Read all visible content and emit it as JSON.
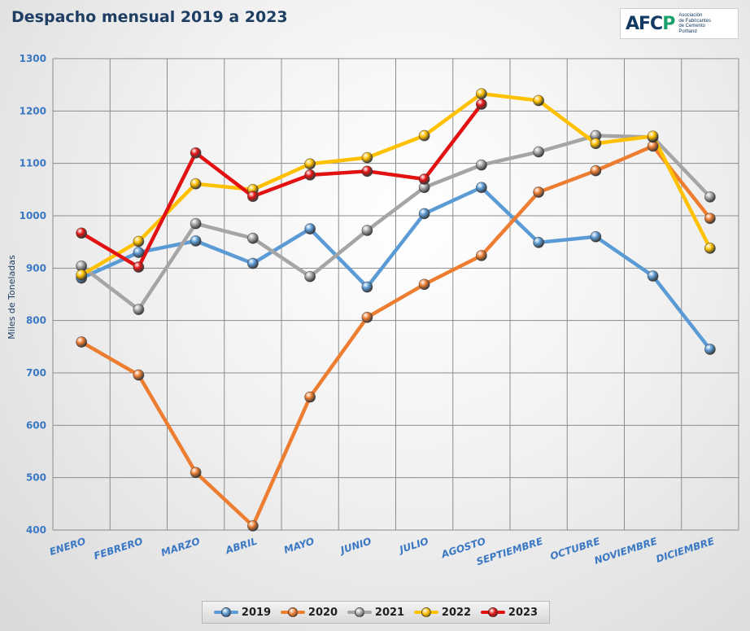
{
  "title": "Despacho mensual 2019 a 2023",
  "logo": {
    "name": "AFCP",
    "mark_left": "AFC",
    "mark_right": "P",
    "subtitle_lines": [
      "Asociación",
      "de Fabricantes",
      "de Cemento",
      "Portland"
    ]
  },
  "chart_data": {
    "type": "line",
    "title": "Despacho mensual 2019 a 2023",
    "xlabel": "",
    "ylabel": "Miles de Toneladas",
    "ylim": [
      400,
      1300
    ],
    "yticks": [
      400,
      500,
      600,
      700,
      800,
      900,
      1000,
      1100,
      1200,
      1300
    ],
    "grid": true,
    "legend_position": "bottom",
    "categories": [
      "ENERO",
      "FEBRERO",
      "MARZO",
      "ABRIL",
      "MAYO",
      "JUNIO",
      "JULIO",
      "AGOSTO",
      "SEPTIEMBRE",
      "OCTUBRE",
      "NOVIEMBRE",
      "DICIEMBRE"
    ],
    "series": [
      {
        "name": "2019",
        "color": "#5b9bd5",
        "values": [
          881,
          930,
          952,
          909,
          975,
          864,
          1004,
          1054,
          949,
          960,
          885,
          745
        ]
      },
      {
        "name": "2020",
        "color": "#ed7d31",
        "values": [
          759,
          696,
          510,
          408,
          654,
          806,
          869,
          924,
          1045,
          1086,
          1133,
          995
        ]
      },
      {
        "name": "2021",
        "color": "#a5a5a5",
        "values": [
          904,
          821,
          985,
          957,
          884,
          972,
          1054,
          1097,
          1122,
          1153,
          1150,
          1036
        ]
      },
      {
        "name": "2022",
        "color": "#ffc000",
        "values": [
          887,
          951,
          1061,
          1050,
          1099,
          1111,
          1153,
          1233,
          1220,
          1138,
          1152,
          938
        ]
      },
      {
        "name": "2023",
        "color": "#e31212",
        "values": [
          967,
          902,
          1120,
          1037,
          1078,
          1085,
          1070,
          1213,
          null,
          null,
          null,
          null
        ]
      }
    ]
  }
}
